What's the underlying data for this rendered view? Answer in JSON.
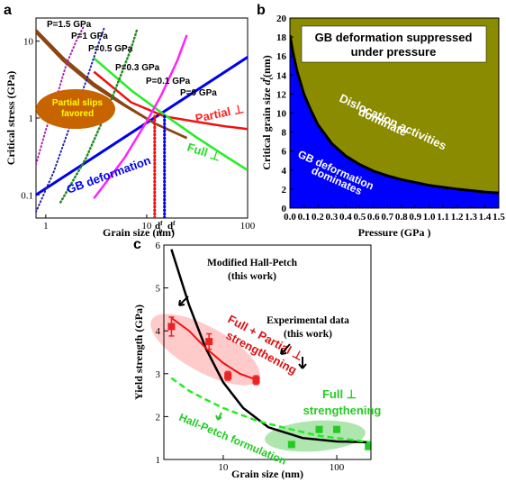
{
  "panels": {
    "a": {
      "label": "a"
    },
    "b": {
      "label": "b"
    },
    "c": {
      "label": "c"
    }
  },
  "chart_data": [
    {
      "id": "a",
      "type": "line",
      "xlabel": "Grain size (nm)",
      "ylabel": "Critical stress (GPa)",
      "xscale": "log",
      "yscale": "log",
      "xlim": [
        0.8,
        100
      ],
      "ylim": [
        0.05,
        20
      ],
      "xticks": [
        "1",
        "10",
        "100"
      ],
      "yticks": [
        "0.1",
        "1",
        "10"
      ],
      "xlabels_special": [
        "d",
        "d"
      ],
      "xlabels_sub": [
        "p",
        "c"
      ],
      "xlabels_sup": [
        "f",
        "f"
      ],
      "pressure_labels": [
        "P=1.5 GPa",
        "P=1 GPa",
        "P=0.5 GPa",
        "P=0.3 GPa",
        "P=0.1 GPa",
        "P=0 GPa"
      ],
      "annotations": {
        "partial": "Partial ⊥",
        "full": "Full ⊥",
        "gb": "GB deformation",
        "partial_slips_1": "Partial slips",
        "partial_slips_2": "favored"
      },
      "series": [
        {
          "kind": "GB deformation",
          "x": [
            0.8,
            100
          ],
          "y": [
            0.1,
            6.2
          ]
        },
        {
          "kind": "Partial",
          "x": [
            3,
            7,
            15,
            30,
            60,
            100
          ],
          "y": [
            4.0,
            1.6,
            1.05,
            0.9,
            0.78,
            0.72
          ]
        },
        {
          "kind": "Full",
          "x": [
            3,
            7,
            15,
            30,
            60,
            100
          ],
          "y": [
            6.0,
            2.3,
            1.1,
            0.58,
            0.32,
            0.21
          ]
        },
        {
          "kind": "P=0 GPa",
          "x": [
            0.8,
            1.5,
            3,
            6,
            12,
            25
          ],
          "y": [
            14,
            6,
            2.8,
            1.5,
            0.85,
            0.55
          ]
        },
        {
          "kind": "P=0.1 GPa",
          "x": [
            0.8,
            1.5,
            3,
            6,
            12,
            25
          ],
          "y": [
            13,
            5.5,
            2.6,
            1.45,
            0.85,
            0.55
          ]
        },
        {
          "kind": "P=0.3 GPa",
          "x": [
            3,
            6,
            10,
            14,
            20,
            25
          ],
          "y": [
            0.09,
            0.3,
            0.9,
            2.0,
            5.5,
            12
          ]
        },
        {
          "kind": "P=0.5 GPa",
          "x": [
            1.4,
            2.5,
            4,
            5.5,
            7,
            8
          ],
          "y": [
            0.08,
            0.3,
            1.2,
            3.5,
            8,
            14
          ]
        },
        {
          "kind": "P=1 GPa",
          "x": [
            0.8,
            1.2,
            1.8,
            2.5,
            3.2,
            3.8
          ],
          "y": [
            0.06,
            0.2,
            0.9,
            3,
            8,
            15
          ]
        },
        {
          "kind": "P=1.5 GPa",
          "x": [
            0.8,
            1,
            1.3,
            1.6,
            2,
            2.4
          ],
          "y": [
            0.25,
            0.7,
            2,
            5,
            10,
            16
          ]
        },
        {
          "kind": "d_p marker",
          "x": [
            12,
            12
          ],
          "y": [
            0.05,
            1.1
          ]
        },
        {
          "kind": "d_c marker",
          "x": [
            15,
            15
          ],
          "y": [
            0.05,
            1.1
          ]
        }
      ]
    },
    {
      "id": "b",
      "type": "area",
      "title": "GB deformation suppressed under pressure",
      "xlabel": "Pressure (GPa )",
      "ylabel": "Critical grain size d (nm)",
      "ylabel_sub": "c",
      "ylabel_sup": "f",
      "xlim": [
        0,
        1.5
      ],
      "ylim": [
        0,
        20
      ],
      "xticks": [
        "0.0",
        "0.1",
        "0.2",
        "0.3",
        "0.4",
        "0.5",
        "0.6",
        "0.7",
        "0.8",
        "0.9",
        "1.0",
        "1.1",
        "1.2",
        "1.3",
        "1.4",
        "1.5"
      ],
      "yticks": [
        "0",
        "2",
        "4",
        "6",
        "8",
        "10",
        "12",
        "14",
        "16",
        "18",
        "20"
      ],
      "regions": {
        "upper_1": "Dislocation activities",
        "upper_2": "dominate",
        "lower_1": "GB deformation",
        "lower_2": "dominates"
      },
      "colors": {
        "upper": "#8b8b00",
        "lower": "#0000ff"
      },
      "boundary": {
        "x": [
          0,
          0.02,
          0.05,
          0.1,
          0.15,
          0.2,
          0.3,
          0.4,
          0.5,
          0.6,
          0.7,
          0.8,
          0.9,
          1.0,
          1.1,
          1.2,
          1.3,
          1.4,
          1.5
        ],
        "y": [
          18.2,
          16.5,
          14.5,
          12.0,
          10.3,
          8.8,
          6.8,
          5.5,
          4.6,
          3.9,
          3.4,
          3.0,
          2.7,
          2.4,
          2.2,
          2.0,
          1.85,
          1.7,
          1.6
        ]
      }
    },
    {
      "id": "c",
      "type": "scatter",
      "xlabel": "Grain size (nm)",
      "ylabel": "Yield strength (GPa)",
      "xscale": "log",
      "xlim": [
        3,
        200
      ],
      "ylim": [
        1,
        6
      ],
      "xticks": [
        "10",
        "100"
      ],
      "yticks": [
        "1",
        "2",
        "3",
        "4",
        "5",
        "6"
      ],
      "annotations": {
        "mhp_1": "Modified Hall-Petch",
        "mhp_2": "(this work)",
        "fp_1": "Full + Partial ⊥",
        "fp_2": "strengthening",
        "exp_1": "Experimental data",
        "exp_2": "(this work)",
        "full_1": "Full ⊥",
        "full_2": "strengthening",
        "hp": "Hall-Petch formulation"
      },
      "series": [
        {
          "kind": "Modified Hall-Petch",
          "x": [
            3.5,
            5,
            7,
            10,
            15,
            25,
            50,
            100,
            200
          ],
          "y": [
            5.9,
            4.6,
            3.6,
            2.8,
            2.2,
            1.75,
            1.5,
            1.42,
            1.4
          ]
        },
        {
          "kind": "Full + Partial fit",
          "x": [
            3.5,
            5,
            7,
            10,
            14,
            20
          ],
          "y": [
            4.3,
            4.0,
            3.6,
            3.25,
            3.0,
            2.85
          ]
        },
        {
          "kind": "Hall-Petch formulation",
          "x": [
            3.5,
            5,
            7,
            10,
            20,
            40,
            70,
            100,
            200
          ],
          "y": [
            2.9,
            2.6,
            2.4,
            2.2,
            1.9,
            1.7,
            1.55,
            1.5,
            1.4
          ]
        },
        {
          "kind": "Experimental (red)",
          "x": [
            3.5,
            7.5,
            11,
            19.5
          ],
          "y": [
            4.1,
            3.75,
            2.95,
            2.85
          ],
          "err": [
            0.22,
            0.18,
            0.1,
            0.1
          ]
        },
        {
          "kind": "Experimental (green)",
          "x": [
            40,
            70,
            100,
            190
          ],
          "y": [
            1.35,
            1.7,
            1.7,
            1.3
          ]
        }
      ]
    }
  ]
}
